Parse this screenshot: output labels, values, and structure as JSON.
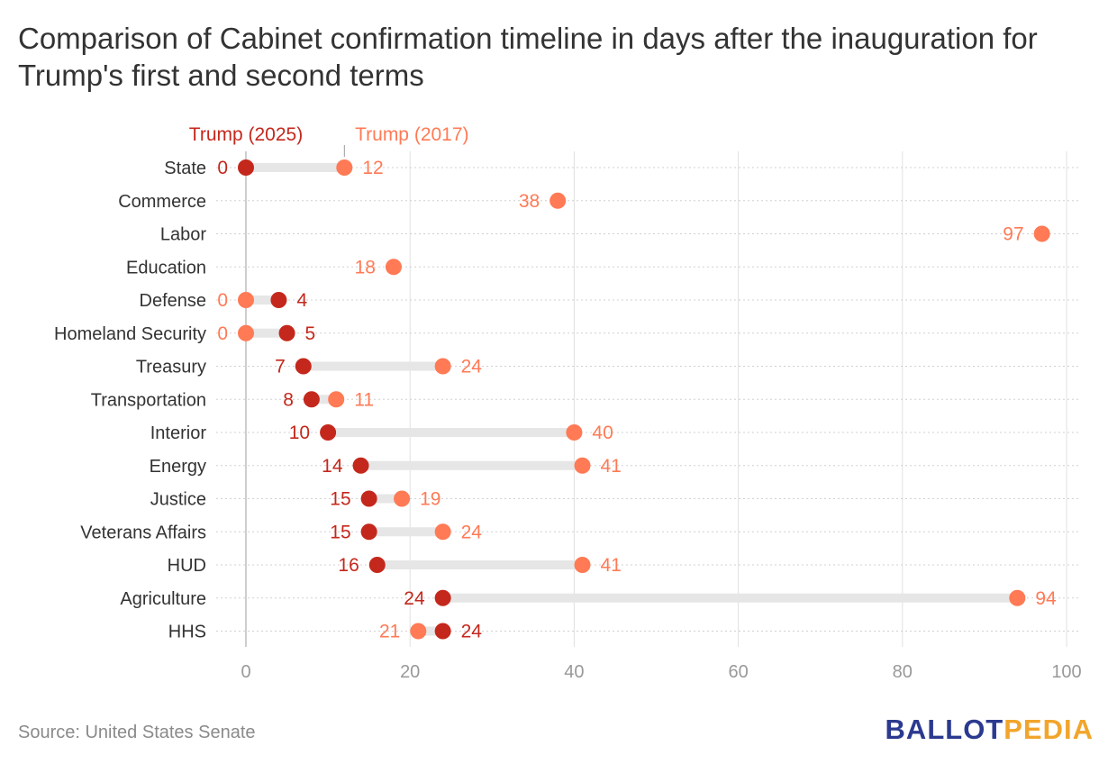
{
  "title": "Comparison of Cabinet confirmation timeline in days after the inauguration for Trump's first and second terms",
  "source": "Source: United States Senate",
  "logo": {
    "part1": "BALLOT",
    "part2": "PEDIA"
  },
  "colors": {
    "trump2025": "#c4281c",
    "trump2017": "#ff7a55",
    "bar": "#e6e6e6",
    "grid": "#e0e0e0",
    "axis_text": "#999999",
    "label_text": "#333333"
  },
  "chart_data": {
    "type": "dumbbell",
    "title": "Comparison of Cabinet confirmation timeline in days after the inauguration for Trump's first and second terms",
    "xlabel": "",
    "ylabel": "",
    "xlim": [
      0,
      100
    ],
    "xticks": [
      0,
      20,
      40,
      60,
      80,
      100
    ],
    "legend": {
      "series_2025": "Trump (2025)",
      "series_2017": "Trump (2017)",
      "placement": "top"
    },
    "categories": [
      "State",
      "Commerce",
      "Labor",
      "Education",
      "Defense",
      "Homeland Security",
      "Treasury",
      "Transportation",
      "Interior",
      "Energy",
      "Justice",
      "Veterans Affairs",
      "HUD",
      "Agriculture",
      "HHS"
    ],
    "series": [
      {
        "name": "Trump (2025)",
        "values": [
          0,
          null,
          null,
          null,
          4,
          5,
          7,
          8,
          10,
          14,
          15,
          15,
          16,
          24,
          24
        ]
      },
      {
        "name": "Trump (2017)",
        "values": [
          12,
          38,
          97,
          18,
          0,
          0,
          24,
          11,
          40,
          41,
          19,
          24,
          41,
          94,
          21
        ]
      }
    ]
  }
}
